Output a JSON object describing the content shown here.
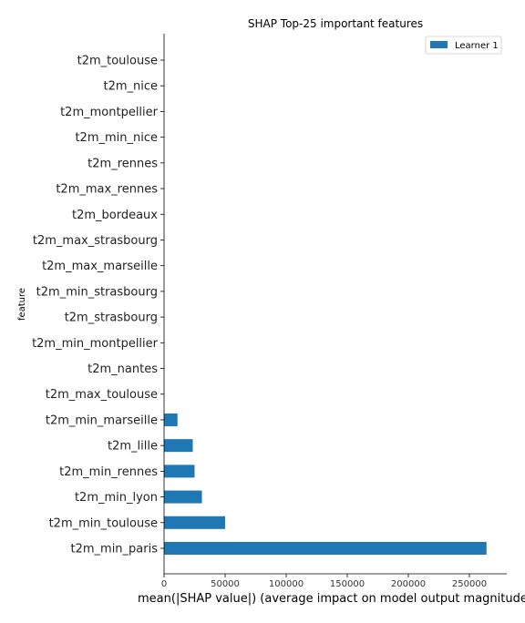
{
  "chart_data": {
    "type": "bar",
    "orientation": "horizontal",
    "title": "SHAP Top-25 important features",
    "xlabel": "mean(|SHAP value|) (average impact on model output magnitude)",
    "ylabel": "feature",
    "categories": [
      "t2m_toulouse",
      "t2m_nice",
      "t2m_montpellier",
      "t2m_min_nice",
      "t2m_rennes",
      "t2m_max_rennes",
      "t2m_bordeaux",
      "t2m_max_strasbourg",
      "t2m_max_marseille",
      "t2m_min_strasbourg",
      "t2m_strasbourg",
      "t2m_min_montpellier",
      "t2m_nantes",
      "t2m_max_toulouse",
      "t2m_min_marseille",
      "t2m_lille",
      "t2m_min_rennes",
      "t2m_min_lyon",
      "t2m_min_toulouse",
      "t2m_min_paris"
    ],
    "series": [
      {
        "name": "Learner 1",
        "color": "#1f77b4",
        "values": [
          0,
          0,
          0,
          0,
          0,
          0,
          0,
          0,
          0,
          0,
          0,
          0,
          0,
          0,
          11000,
          23500,
          25000,
          31000,
          50000,
          264000
        ]
      }
    ],
    "xlim": [
      0,
      276000
    ],
    "xticks": [
      0,
      50000,
      100000,
      150000,
      200000,
      250000
    ],
    "xtick_labels": [
      "0",
      "50000",
      "100000",
      "150000",
      "200000",
      "250000"
    ],
    "legend_position": "top-right",
    "grid": false
  }
}
